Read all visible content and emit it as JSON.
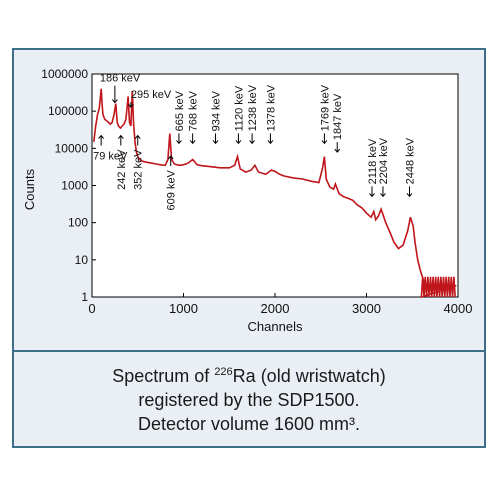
{
  "colors": {
    "frame": "#3e6f89",
    "panel": "#e9eff4",
    "plot_bg": "#ffffff",
    "series": "#c0151b"
  },
  "caption": {
    "prefix": "Spectrum of ",
    "isotope_mass": "226",
    "isotope_symbol": "Ra",
    "rest": " (old wristwatch)",
    "line2": "registered by the SDP1500.",
    "line3": "Detector volume 1600 mm³."
  },
  "chart_data": {
    "type": "line",
    "title": "",
    "xlabel": "Channels",
    "ylabel": "Counts",
    "xlim": [
      0,
      4000
    ],
    "ylim": [
      1,
      1000000
    ],
    "yscale": "log",
    "grid": false,
    "x_ticks": [
      0,
      1000,
      2000,
      3000,
      4000
    ],
    "x_tick_labels": [
      "0",
      "1000",
      "2000",
      "3000",
      "4000"
    ],
    "y_ticks": [
      1,
      10,
      100,
      1000,
      10000,
      100000,
      1000000
    ],
    "y_tick_labels": [
      "1",
      "10",
      "100",
      "1000",
      "10000",
      "100000",
      "1000000"
    ],
    "series": [
      {
        "x": [
          20,
          40,
          60,
          80,
          100,
          110,
          120,
          140,
          160,
          180,
          200,
          220,
          240,
          260,
          275,
          290,
          310,
          330,
          350,
          370,
          395,
          410,
          425,
          440,
          455,
          470,
          485,
          500,
          520,
          550,
          600,
          650,
          700,
          750,
          800,
          830,
          850,
          870,
          900,
          950,
          1000,
          1050,
          1100,
          1150,
          1200,
          1300,
          1400,
          1500,
          1560,
          1590,
          1620,
          1680,
          1740,
          1780,
          1820,
          1900,
          1960,
          2000,
          2050,
          2100,
          2200,
          2300,
          2400,
          2480,
          2520,
          2540,
          2560,
          2600,
          2640,
          2660,
          2700,
          2750,
          2800,
          2850,
          2900,
          2950,
          3000,
          3050,
          3080,
          3100,
          3130,
          3160,
          3190,
          3210,
          3250,
          3300,
          3350,
          3400,
          3450,
          3480,
          3510,
          3530,
          3560,
          3590,
          3620,
          3650,
          3700,
          3750,
          3800,
          3850,
          3900,
          3950,
          3980
        ],
        "y": [
          15000,
          40000,
          80000,
          120000,
          400000,
          150000,
          80000,
          60000,
          55000,
          50000,
          45000,
          50000,
          80000,
          160000,
          50000,
          40000,
          35000,
          40000,
          45000,
          60000,
          250000,
          50000,
          40000,
          350000,
          45000,
          15000,
          8000,
          6000,
          5000,
          4500,
          4200,
          4000,
          3800,
          3600,
          3500,
          5000,
          25000,
          5000,
          3800,
          3500,
          3600,
          4000,
          5000,
          3600,
          3400,
          3200,
          3000,
          3000,
          3500,
          6000,
          2800,
          2300,
          2600,
          3500,
          2300,
          2000,
          2600,
          2400,
          2000,
          1800,
          1600,
          1500,
          1300,
          1200,
          3000,
          6000,
          1500,
          900,
          800,
          1100,
          600,
          500,
          450,
          400,
          300,
          250,
          180,
          140,
          200,
          120,
          150,
          230,
          140,
          100,
          60,
          30,
          20,
          25,
          60,
          140,
          80,
          30,
          10,
          5,
          3,
          2,
          2,
          2,
          2,
          2,
          2,
          2,
          2
        ]
      }
    ],
    "annotations": [
      {
        "label": "79 keV",
        "x": 100,
        "y": 25000
      },
      {
        "label": "186 keV",
        "x": 250,
        "y": 160000
      },
      {
        "label": "242 keV",
        "x": 315,
        "y": 25000
      },
      {
        "label": "295 keV",
        "x": 425,
        "y": 120000
      },
      {
        "label": "352 keV",
        "x": 500,
        "y": 25000
      },
      {
        "label": "609 keV",
        "x": 860,
        "y": 7000
      },
      {
        "label": "665 keV",
        "x": 950,
        "y": 12000
      },
      {
        "label": "768 keV",
        "x": 1100,
        "y": 12000
      },
      {
        "label": "934 keV",
        "x": 1350,
        "y": 12000
      },
      {
        "label": "1120 keV",
        "x": 1600,
        "y": 12000
      },
      {
        "label": "1238 keV",
        "x": 1750,
        "y": 12000
      },
      {
        "label": "1378 keV",
        "x": 1950,
        "y": 12000
      },
      {
        "label": "1769 keV",
        "x": 2540,
        "y": 12000
      },
      {
        "label": "1847 keV",
        "x": 2680,
        "y": 7000
      },
      {
        "label": "2118 keV",
        "x": 3060,
        "y": 450
      },
      {
        "label": "2204 keV",
        "x": 3180,
        "y": 450
      },
      {
        "label": "2448 keV",
        "x": 3470,
        "y": 450
      }
    ]
  }
}
